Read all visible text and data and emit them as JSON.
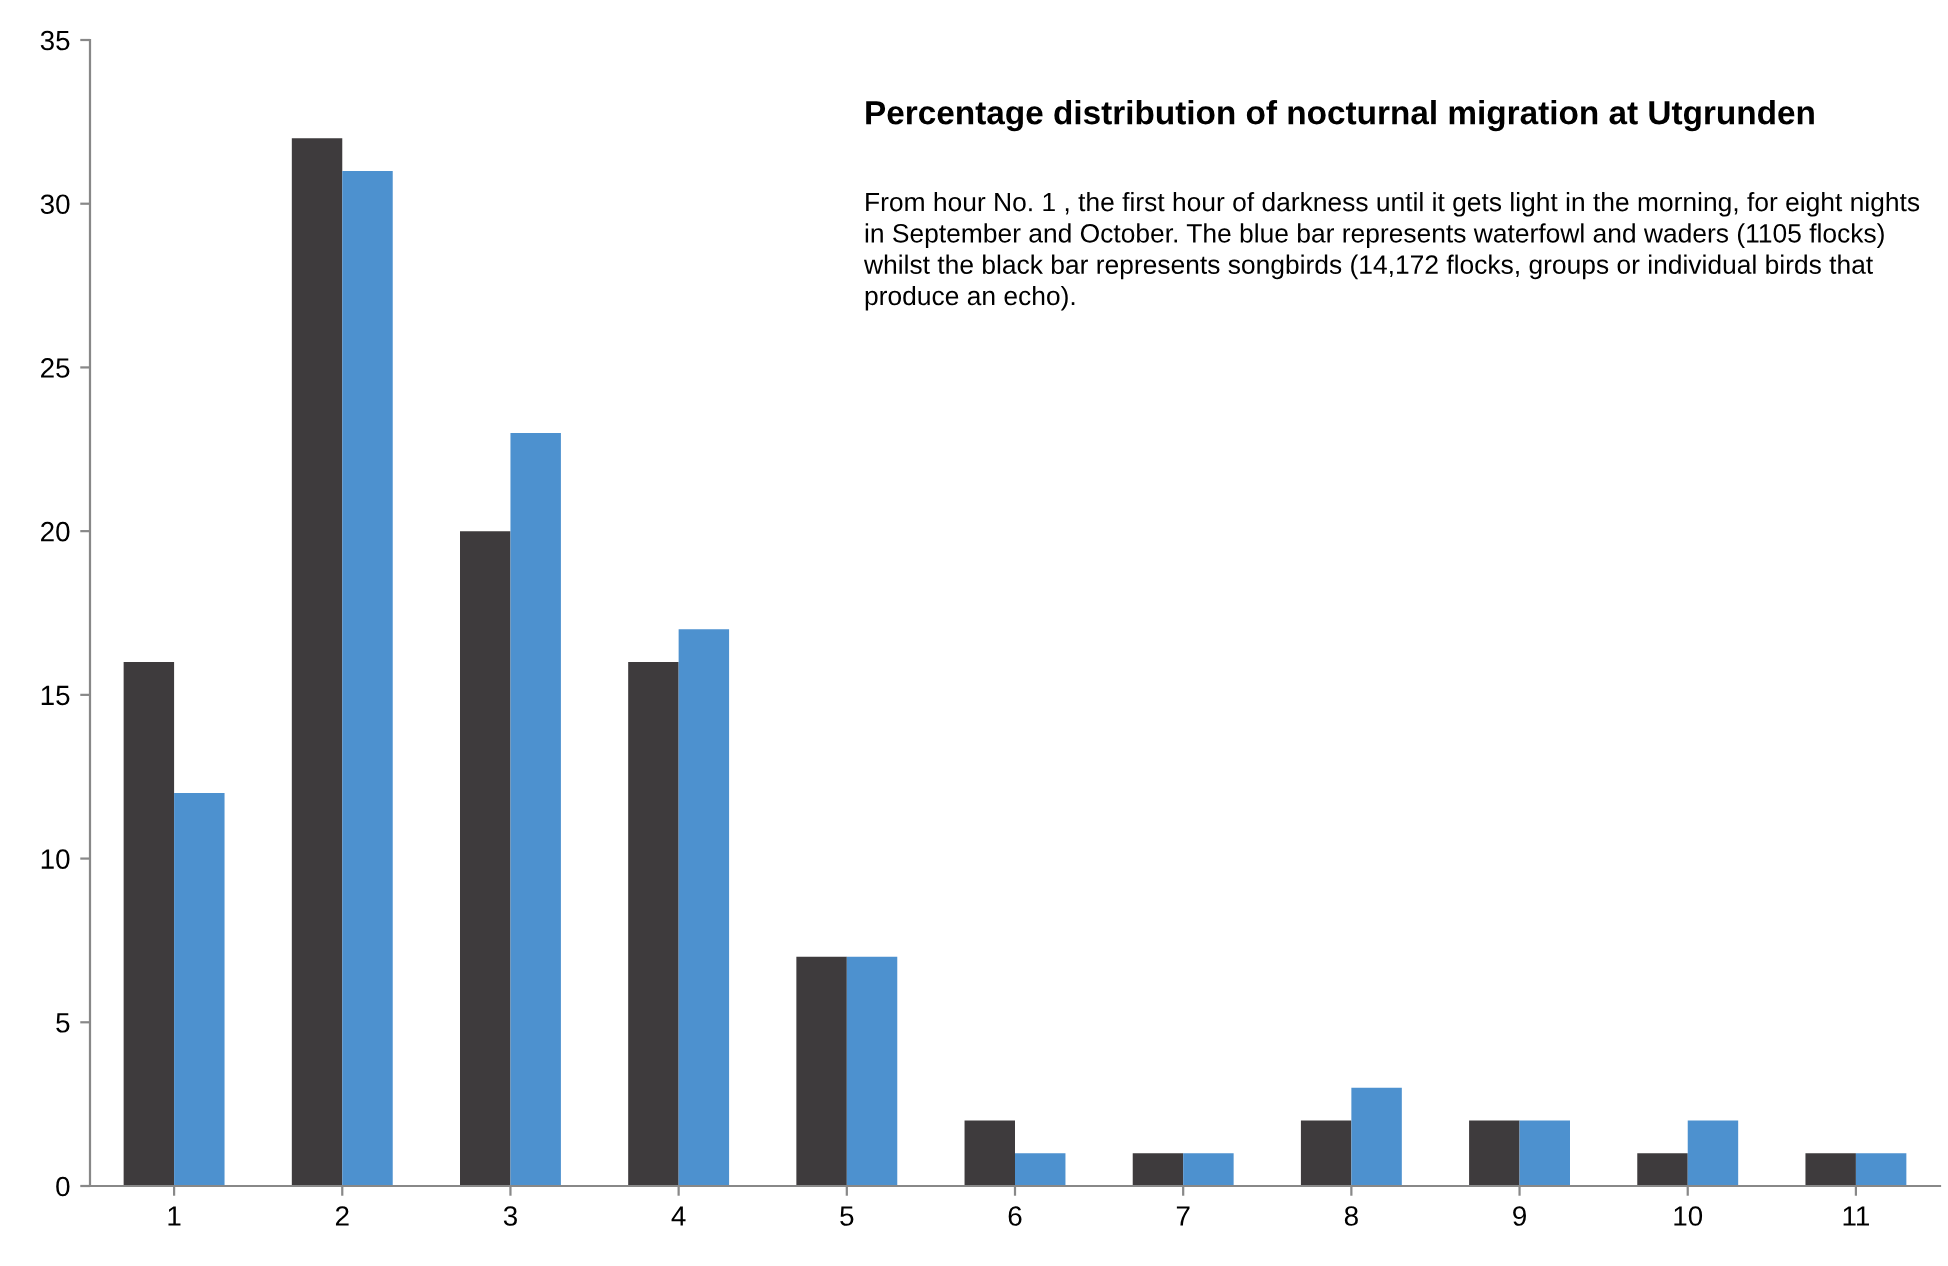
{
  "chart_data": {
    "type": "bar",
    "title": "Percentage distribution of nocturnal migration at Utgrunden",
    "subtitle": "From hour No. 1 , the first hour of darkness until it gets light in the morning, for eight nights in September and October. The blue bar represents waterfowl and waders (1105 flocks) whilst the black bar represents songbirds (14,172 flocks, groups or individual birds that produce an echo).",
    "categories": [
      "1",
      "2",
      "3",
      "4",
      "5",
      "6",
      "7",
      "8",
      "9",
      "10",
      "11"
    ],
    "series": [
      {
        "color": "#3e3b3d",
        "values": [
          16,
          32,
          20,
          16,
          7,
          2,
          1,
          2,
          2,
          1,
          1
        ]
      },
      {
        "color": "#4d91cf",
        "values": [
          12,
          31,
          23,
          17,
          7,
          1,
          1,
          3,
          2,
          2,
          1
        ]
      }
    ],
    "ylim": [
      0,
      35
    ],
    "yticks": [
      0,
      5,
      10,
      15,
      20,
      25,
      30,
      35
    ],
    "grid": false
  }
}
